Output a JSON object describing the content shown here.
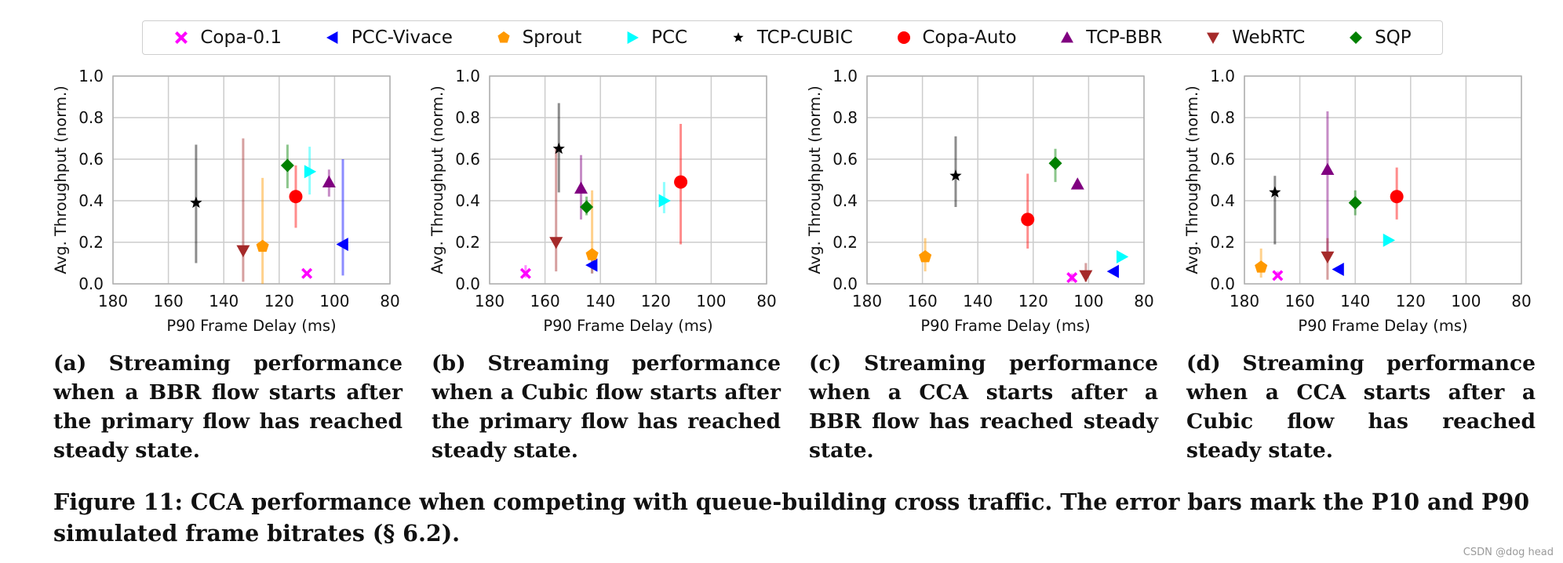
{
  "legend": [
    {
      "name": "Copa-0.1",
      "color": "#ff00ff",
      "marker": "x-icon"
    },
    {
      "name": "PCC-Vivace",
      "color": "#0000ff",
      "marker": "triangle-left-icon"
    },
    {
      "name": "Sprout",
      "color": "#ff9900",
      "marker": "pentagon-icon"
    },
    {
      "name": "PCC",
      "color": "#00ffff",
      "marker": "triangle-right-icon"
    },
    {
      "name": "TCP-CUBIC",
      "color": "#000000",
      "marker": "star-icon"
    },
    {
      "name": "Copa-Auto",
      "color": "#ff0000",
      "marker": "circle-icon"
    },
    {
      "name": "TCP-BBR",
      "color": "#800080",
      "marker": "triangle-up-icon"
    },
    {
      "name": "WebRTC",
      "color": "#a52a2a",
      "marker": "triangle-down-icon"
    },
    {
      "name": "SQP",
      "color": "#008000",
      "marker": "diamond-icon"
    }
  ],
  "chart_data": [
    {
      "type": "scatter",
      "title": "",
      "xlabel": "P90 Frame Delay (ms)",
      "ylabel": "Avg. Throughput (norm.)",
      "xlim": [
        180,
        80
      ],
      "ylim": [
        0.0,
        1.0
      ],
      "xticks": [
        "180",
        "160",
        "140",
        "120",
        "100",
        "80"
      ],
      "yticks": [
        "0.0",
        "0.2",
        "0.4",
        "0.6",
        "0.8",
        "1.0"
      ],
      "grid": true,
      "series": [
        {
          "name": "Copa-0.1",
          "x": 110,
          "y": 0.05,
          "lo": 0.05,
          "hi": 0.05
        },
        {
          "name": "PCC-Vivace",
          "x": 97,
          "y": 0.19,
          "lo": 0.04,
          "hi": 0.6
        },
        {
          "name": "Sprout",
          "x": 126,
          "y": 0.18,
          "lo": 0.0,
          "hi": 0.51
        },
        {
          "name": "PCC",
          "x": 109,
          "y": 0.54,
          "lo": 0.43,
          "hi": 0.66
        },
        {
          "name": "TCP-CUBIC",
          "x": 150,
          "y": 0.39,
          "lo": 0.1,
          "hi": 0.67
        },
        {
          "name": "Copa-Auto",
          "x": 114,
          "y": 0.42,
          "lo": 0.27,
          "hi": 0.57
        },
        {
          "name": "TCP-BBR",
          "x": 102,
          "y": 0.49,
          "lo": 0.42,
          "hi": 0.55
        },
        {
          "name": "WebRTC",
          "x": 133,
          "y": 0.16,
          "lo": 0.01,
          "hi": 0.7
        },
        {
          "name": "SQP",
          "x": 117,
          "y": 0.57,
          "lo": 0.46,
          "hi": 0.67
        }
      ]
    },
    {
      "type": "scatter",
      "title": "",
      "xlabel": "P90 Frame Delay (ms)",
      "ylabel": "Avg. Throughput (norm.)",
      "xlim": [
        180,
        80
      ],
      "ylim": [
        0.0,
        1.0
      ],
      "xticks": [
        "180",
        "160",
        "140",
        "120",
        "100",
        "80"
      ],
      "yticks": [
        "0.0",
        "0.2",
        "0.4",
        "0.6",
        "0.8",
        "1.0"
      ],
      "grid": true,
      "series": [
        {
          "name": "Copa-0.1",
          "x": 167,
          "y": 0.05,
          "lo": 0.03,
          "hi": 0.09
        },
        {
          "name": "PCC-Vivace",
          "x": 143,
          "y": 0.09,
          "lo": 0.05,
          "hi": 0.13
        },
        {
          "name": "Sprout",
          "x": 143,
          "y": 0.14,
          "lo": 0.05,
          "hi": 0.45
        },
        {
          "name": "PCC",
          "x": 117,
          "y": 0.4,
          "lo": 0.34,
          "hi": 0.49
        },
        {
          "name": "TCP-CUBIC",
          "x": 155,
          "y": 0.65,
          "lo": 0.44,
          "hi": 0.87
        },
        {
          "name": "Copa-Auto",
          "x": 111,
          "y": 0.49,
          "lo": 0.19,
          "hi": 0.77
        },
        {
          "name": "TCP-BBR",
          "x": 147,
          "y": 0.46,
          "lo": 0.31,
          "hi": 0.62
        },
        {
          "name": "WebRTC",
          "x": 156,
          "y": 0.2,
          "lo": 0.06,
          "hi": 0.65
        },
        {
          "name": "SQP",
          "x": 145,
          "y": 0.37,
          "lo": 0.33,
          "hi": 0.42
        }
      ]
    },
    {
      "type": "scatter",
      "title": "",
      "xlabel": "P90 Frame Delay (ms)",
      "ylabel": "Avg. Throughput (norm.)",
      "xlim": [
        180,
        80
      ],
      "ylim": [
        0.0,
        1.0
      ],
      "xticks": [
        "180",
        "160",
        "140",
        "120",
        "100",
        "80"
      ],
      "yticks": [
        "0.0",
        "0.2",
        "0.4",
        "0.6",
        "0.8",
        "1.0"
      ],
      "grid": true,
      "series": [
        {
          "name": "Copa-0.1",
          "x": 106,
          "y": 0.03,
          "lo": 0.01,
          "hi": 0.05
        },
        {
          "name": "PCC-Vivace",
          "x": 91,
          "y": 0.06,
          "lo": 0.06,
          "hi": 0.06
        },
        {
          "name": "Sprout",
          "x": 159,
          "y": 0.13,
          "lo": 0.06,
          "hi": 0.22
        },
        {
          "name": "PCC",
          "x": 88,
          "y": 0.13,
          "lo": 0.13,
          "hi": 0.13
        },
        {
          "name": "TCP-CUBIC",
          "x": 148,
          "y": 0.52,
          "lo": 0.37,
          "hi": 0.71
        },
        {
          "name": "Copa-Auto",
          "x": 122,
          "y": 0.31,
          "lo": 0.17,
          "hi": 0.53
        },
        {
          "name": "TCP-BBR",
          "x": 104,
          "y": 0.48,
          "lo": 0.46,
          "hi": 0.5
        },
        {
          "name": "WebRTC",
          "x": 101,
          "y": 0.04,
          "lo": 0.01,
          "hi": 0.1
        },
        {
          "name": "SQP",
          "x": 112,
          "y": 0.58,
          "lo": 0.49,
          "hi": 0.65
        }
      ]
    },
    {
      "type": "scatter",
      "title": "",
      "xlabel": "P90 Frame Delay (ms)",
      "ylabel": "Avg. Throughput (norm.)",
      "xlim": [
        180,
        80
      ],
      "ylim": [
        0.0,
        1.0
      ],
      "xticks": [
        "180",
        "160",
        "140",
        "120",
        "100",
        "80"
      ],
      "yticks": [
        "0.0",
        "0.2",
        "0.4",
        "0.6",
        "0.8",
        "1.0"
      ],
      "grid": true,
      "series": [
        {
          "name": "Copa-0.1",
          "x": 168,
          "y": 0.04,
          "lo": 0.03,
          "hi": 0.06
        },
        {
          "name": "PCC-Vivace",
          "x": 146,
          "y": 0.07,
          "lo": 0.07,
          "hi": 0.07
        },
        {
          "name": "Sprout",
          "x": 174,
          "y": 0.08,
          "lo": 0.03,
          "hi": 0.17
        },
        {
          "name": "PCC",
          "x": 128,
          "y": 0.21,
          "lo": 0.21,
          "hi": 0.21
        },
        {
          "name": "TCP-CUBIC",
          "x": 169,
          "y": 0.44,
          "lo": 0.19,
          "hi": 0.52
        },
        {
          "name": "Copa-Auto",
          "x": 125,
          "y": 0.42,
          "lo": 0.31,
          "hi": 0.56
        },
        {
          "name": "TCP-BBR",
          "x": 150,
          "y": 0.55,
          "lo": 0.15,
          "hi": 0.83
        },
        {
          "name": "WebRTC",
          "x": 150,
          "y": 0.13,
          "lo": 0.02,
          "hi": 0.22
        },
        {
          "name": "SQP",
          "x": 140,
          "y": 0.39,
          "lo": 0.33,
          "hi": 0.45
        }
      ]
    }
  ],
  "captions": [
    {
      "label": "(a)",
      "text": "Streaming performance when a BBR flow starts after the primary flow has reached steady state."
    },
    {
      "label": "(b)",
      "text": "Streaming performance when a Cubic flow starts after the primary flow has reached steady state."
    },
    {
      "label": "(c)",
      "text": "Streaming performance when a CCA starts after a BBR flow has reached steady state."
    },
    {
      "label": "(d)",
      "text": "Streaming performance when a CCA starts after a Cubic flow has reached steady state."
    }
  ],
  "figure_caption": "Figure 11: CCA performance when competing with queue-building cross traffic. The error bars mark the P10 and P90 simulated frame bitrates (§ 6.2).",
  "watermark": "CSDN @dog head"
}
